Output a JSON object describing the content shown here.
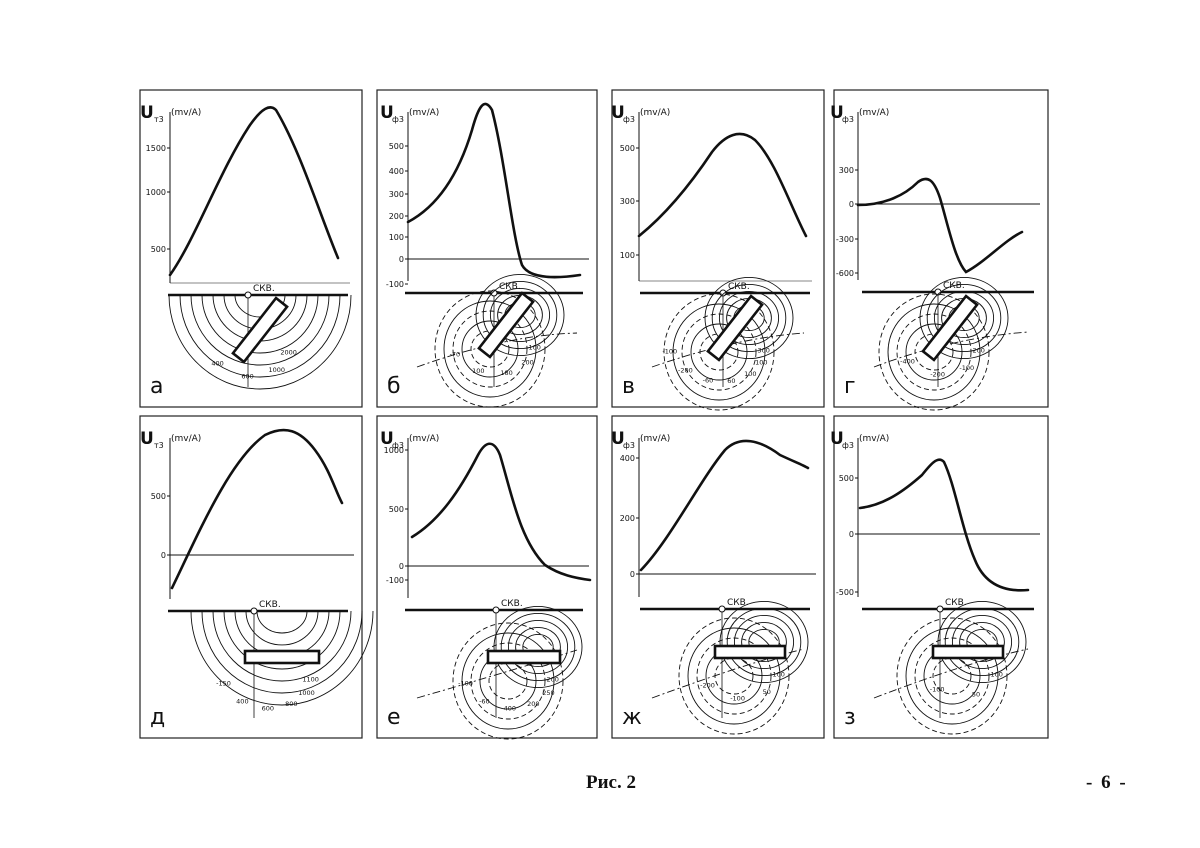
{
  "figure": {
    "caption": "Рис. 2",
    "page_number": "- 6 -",
    "borehole_label": "СКВ.",
    "panels": [
      {
        "letter": "а",
        "ylabel": "U",
        "sub": "т3",
        "unit": "(mv/A)",
        "ticks": [
          "1500",
          "1000",
          "500"
        ],
        "contours": [
          "2000",
          "1000",
          "600",
          "400"
        ]
      },
      {
        "letter": "б",
        "ylabel": "U",
        "sub": "ф3",
        "unit": "(mv/A)",
        "ticks": [
          "500",
          "400",
          "300",
          "200",
          "100",
          "0",
          "-100"
        ],
        "contours": [
          "100",
          "200",
          "180",
          "100",
          "-70"
        ]
      },
      {
        "letter": "в",
        "ylabel": "U",
        "sub": "ф3",
        "unit": "(mv/A)",
        "ticks": [
          "500",
          "300",
          "100"
        ],
        "contours": [
          "300",
          "100",
          "100",
          "60",
          "-60",
          "-200",
          "-100"
        ]
      },
      {
        "letter": "г",
        "ylabel": "U",
        "sub": "ф3",
        "unit": "(mv/A)",
        "ticks": [
          "300",
          "0",
          "-300",
          "-600"
        ],
        "contours": [
          "200",
          "-100",
          "-200",
          "-400"
        ]
      },
      {
        "letter": "д",
        "ylabel": "U",
        "sub": "т3",
        "unit": "(mv/A)",
        "ticks": [
          "500",
          "0"
        ],
        "contours": [
          "1100",
          "1000",
          "800",
          "600",
          "400",
          "-150"
        ]
      },
      {
        "letter": "е",
        "ylabel": "U",
        "sub": "ф3",
        "unit": "(mv/A)",
        "ticks": [
          "1000",
          "500",
          "0",
          "-100"
        ],
        "contours": [
          "200",
          "250",
          "200",
          "400",
          "-60",
          "-100"
        ]
      },
      {
        "letter": "ж",
        "ylabel": "U",
        "sub": "ф3",
        "unit": "(mv/A)",
        "ticks": [
          "400",
          "200",
          "0"
        ],
        "contours": [
          "100",
          "50",
          "-100",
          "-200"
        ]
      },
      {
        "letter": "з",
        "ylabel": "U",
        "sub": "ф3",
        "unit": "(mv/A)",
        "ticks": [
          "500",
          "0",
          "-500"
        ],
        "contours": [
          "100",
          "50",
          "-100"
        ]
      }
    ]
  },
  "colors": {
    "ink": "#111111",
    "frame": "#222222",
    "paper": "#ffffff"
  }
}
